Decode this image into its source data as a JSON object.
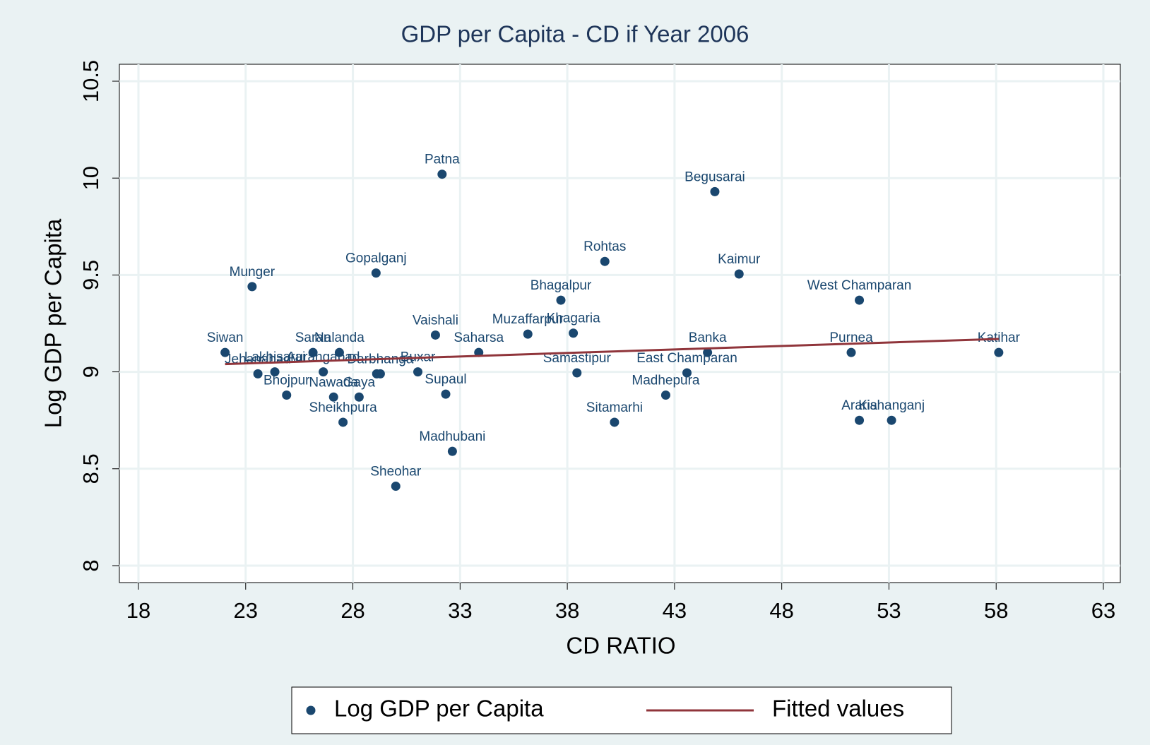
{
  "chart_data": {
    "type": "scatter",
    "title": "GDP per Capita - CD if Year 2006",
    "x_label": "CD RATIO",
    "y_label": "Log GDP per Capita",
    "xlim": [
      18,
      63
    ],
    "xticks": [
      18,
      23,
      28,
      33,
      38,
      43,
      48,
      53,
      58,
      63
    ],
    "ylim": [
      8,
      10.5
    ],
    "yticks": [
      8,
      8.5,
      9,
      9.5,
      10,
      10.5
    ],
    "grid": true,
    "series": [
      {
        "name": "Log GDP per Capita",
        "type": "scatter",
        "color": "#1a476f",
        "labels": [
          "Patna",
          "Begusarai",
          "Rohtas",
          "Kaimur",
          "Munger",
          "Gopalganj",
          "Bhagalpur",
          "West Champaran",
          "Vaishali",
          "Muzaffarpur",
          "Khagaria",
          "Saharsa",
          "Siwan",
          "Saran",
          "Nalanda",
          "Banka",
          "Purnea",
          "Katihar",
          "Jehanabad",
          "Lakhisarai",
          "Aurangabad",
          null,
          "Darbhanga",
          "Buxar",
          "Samastipur",
          "East Champaran",
          "Supaul",
          "Madhepura",
          "Bhojpur",
          "Nawada",
          "Gaya",
          "Sheikhpura",
          "Sitamarhi",
          "Araria",
          "Kishanganj",
          "Madhubani",
          "Sheohar"
        ],
        "x": [
          32.16,
          44.88,
          39.75,
          46.01,
          23.3,
          29.08,
          37.7,
          51.62,
          31.85,
          36.16,
          38.28,
          33.87,
          22.04,
          26.14,
          27.37,
          44.54,
          51.24,
          58.12,
          23.57,
          24.36,
          26.62,
          29.11,
          29.28,
          31.03,
          38.45,
          43.58,
          32.33,
          42.59,
          24.91,
          27.1,
          28.29,
          27.54,
          40.2,
          51.62,
          53.12,
          32.64,
          30.0
        ],
        "values": [
          10.02,
          9.93,
          9.57,
          9.505,
          9.44,
          9.51,
          9.37,
          9.37,
          9.19,
          9.195,
          9.2,
          9.1,
          9.1,
          9.1,
          9.1,
          9.1,
          9.1,
          9.1,
          8.99,
          9.0,
          9.0,
          8.99,
          8.99,
          9.0,
          8.995,
          8.995,
          8.885,
          8.88,
          8.88,
          8.87,
          8.87,
          8.74,
          8.74,
          8.75,
          8.75,
          8.59,
          8.41
        ]
      },
      {
        "name": "Fitted values",
        "type": "line",
        "color": "#90353b",
        "x": [
          22.04,
          58.12
        ],
        "values": [
          9.04,
          9.17
        ]
      }
    ]
  }
}
